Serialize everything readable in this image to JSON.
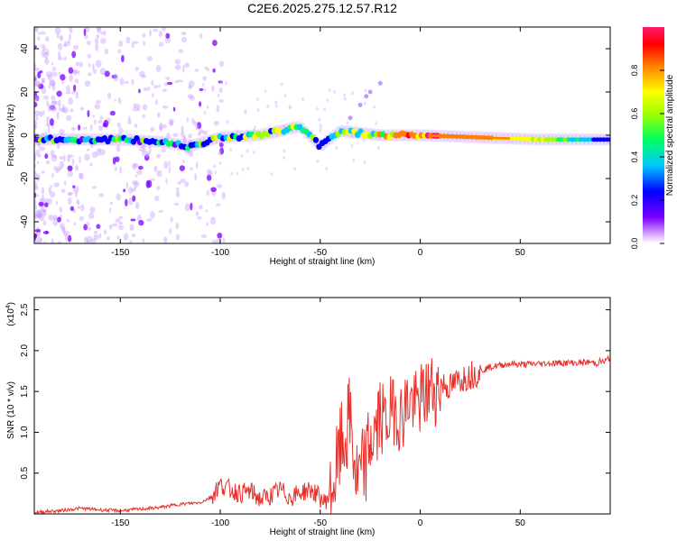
{
  "title": "C2E6.2025.275.12.57.R12",
  "chart_data": [
    {
      "type": "heatmap",
      "title": "C2E6.2025.275.12.57.R12",
      "xlabel": "Height of straight line (km)",
      "ylabel": "Frequency (Hz)",
      "xlim": [
        -193,
        95
      ],
      "ylim": [
        -50,
        50
      ],
      "xticks": [
        -150,
        -100,
        -50,
        0,
        50
      ],
      "yticks": [
        -40,
        -20,
        0,
        20,
        40
      ],
      "colorbar": {
        "label": "Normalized spectral amplitude",
        "range": [
          0,
          1
        ],
        "ticks": [
          0.0,
          0.2,
          0.4,
          0.6,
          0.8
        ],
        "tick_labels": [
          "0.0",
          "0.2",
          "0.4",
          "0.6",
          "0.8"
        ]
      },
      "ridge": [
        {
          "x": -190,
          "f": -2,
          "a": 0.45
        },
        {
          "x": -170,
          "f": -2,
          "a": 0.45
        },
        {
          "x": -150,
          "f": -2,
          "a": 0.5
        },
        {
          "x": -130,
          "f": -3,
          "a": 0.45
        },
        {
          "x": -115,
          "f": -5,
          "a": 0.4
        },
        {
          "x": -100,
          "f": -1,
          "a": 0.6
        },
        {
          "x": -80,
          "f": 0,
          "a": 0.55
        },
        {
          "x": -60,
          "f": 4,
          "a": 0.55
        },
        {
          "x": -50,
          "f": -5,
          "a": 0.5
        },
        {
          "x": -40,
          "f": 2,
          "a": 0.6
        },
        {
          "x": -20,
          "f": 0,
          "a": 0.7
        },
        {
          "x": 0,
          "f": 0,
          "a": 0.9
        },
        {
          "x": 30,
          "f": -1,
          "a": 0.85
        },
        {
          "x": 60,
          "f": -2,
          "a": 0.7
        },
        {
          "x": 94,
          "f": -2,
          "a": 0.4
        }
      ]
    },
    {
      "type": "line",
      "title": "",
      "xlabel": "Height of straight line (km)",
      "ylabel": "SNR (10 * v/v)",
      "y_multiplier": "(x10",
      "y_multiplier_exp": "4",
      "y_multiplier_close": ")",
      "xlim": [
        -193,
        95
      ],
      "ylim": [
        0,
        2.65
      ],
      "xticks": [
        -150,
        -100,
        -50,
        0,
        50
      ],
      "yticks": [
        0.5,
        1.0,
        1.5,
        2.0,
        2.5
      ],
      "ytick_labels": [
        "0.5",
        "1.0",
        "1.5",
        "2.0",
        "2.5"
      ],
      "color": "#e8302a",
      "series": [
        {
          "name": "SNR",
          "x": [
            -193,
            -180,
            -170,
            -160,
            -150,
            -140,
            -130,
            -120,
            -110,
            -105,
            -100,
            -95,
            -90,
            -85,
            -80,
            -75,
            -70,
            -65,
            -60,
            -55,
            -50,
            -48,
            -45,
            -42,
            -40,
            -37,
            -35,
            -32,
            -30,
            -27,
            -25,
            -22,
            -20,
            -17,
            -15,
            -12,
            -10,
            -7,
            -5,
            -2,
            0,
            3,
            5,
            8,
            10,
            15,
            20,
            25,
            30,
            35,
            40,
            45,
            50,
            60,
            70,
            80,
            85,
            88,
            90,
            92,
            94
          ],
          "values": [
            0.02,
            0.04,
            0.07,
            0.05,
            0.04,
            0.06,
            0.08,
            0.12,
            0.14,
            0.2,
            0.36,
            0.3,
            0.25,
            0.28,
            0.18,
            0.22,
            0.3,
            0.2,
            0.26,
            0.3,
            0.2,
            0.14,
            0.25,
            0.5,
            0.8,
            0.95,
            1.2,
            0.4,
            0.45,
            0.65,
            0.9,
            1.0,
            1.2,
            1.1,
            1.25,
            1.3,
            1.15,
            1.35,
            1.4,
            1.3,
            1.4,
            1.45,
            1.55,
            1.5,
            1.6,
            1.55,
            1.65,
            1.7,
            1.75,
            1.8,
            1.82,
            1.84,
            1.83,
            1.84,
            1.85,
            1.85,
            1.86,
            1.84,
            1.87,
            1.86,
            1.9
          ]
        }
      ]
    }
  ]
}
